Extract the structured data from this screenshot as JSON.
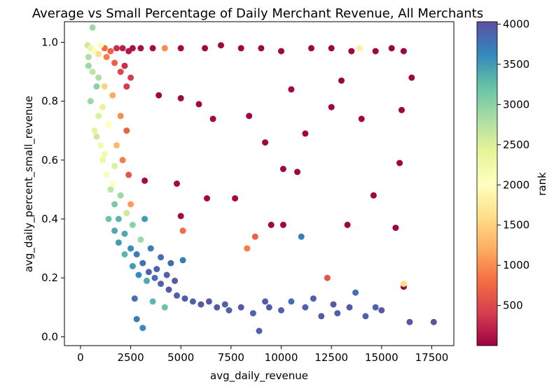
{
  "chart_data": {
    "type": "scatter",
    "title": "Average vs Small Percentage of Daily Merchant Revenue, All Merchants",
    "xlabel": "avg_daily_revenue",
    "ylabel": "avg_daily_percent_small_revenue",
    "xlim": [
      -800,
      18600
    ],
    "ylim": [
      -0.03,
      1.07
    ],
    "xticks": [
      0,
      2500,
      5000,
      7500,
      10000,
      12500,
      15000,
      17500
    ],
    "xtick_labels": [
      "0",
      "2500",
      "5000",
      "7500",
      "10000",
      "12500",
      "15000",
      "17500"
    ],
    "yticks": [
      0.0,
      0.2,
      0.4,
      0.6,
      0.8,
      1.0
    ],
    "ytick_labels": [
      "0.0",
      "0.2",
      "0.4",
      "0.6",
      "0.8",
      "1.0"
    ],
    "grid": false,
    "colorbar": {
      "label": "rank",
      "colormap": "Spectral",
      "range": [
        1,
        4030
      ],
      "ticks": [
        500,
        1000,
        1500,
        2000,
        2500,
        3000,
        3500,
        4000
      ],
      "tick_labels": [
        "500",
        "1000",
        "1500",
        "2000",
        "2500",
        "3000",
        "3500",
        "4000"
      ]
    },
    "points": [
      [
        350,
        0.99,
        2600
      ],
      [
        500,
        0.98,
        2300
      ],
      [
        700,
        0.97,
        2100
      ],
      [
        900,
        0.96,
        1600
      ],
      [
        1200,
        0.98,
        800
      ],
      [
        1500,
        0.97,
        700
      ],
      [
        1800,
        0.98,
        300
      ],
      [
        2100,
        0.98,
        200
      ],
      [
        2400,
        0.97,
        150
      ],
      [
        2600,
        0.98,
        120
      ],
      [
        3000,
        0.98,
        90
      ],
      [
        3600,
        0.98,
        60
      ],
      [
        4200,
        0.98,
        1000
      ],
      [
        5000,
        0.98,
        50
      ],
      [
        6200,
        0.98,
        40
      ],
      [
        7000,
        0.99,
        30
      ],
      [
        8000,
        0.98,
        30
      ],
      [
        9000,
        0.98,
        25
      ],
      [
        10000,
        0.97,
        20
      ],
      [
        11500,
        0.98,
        20
      ],
      [
        12500,
        0.98,
        15
      ],
      [
        13500,
        0.97,
        15
      ],
      [
        13900,
        0.98,
        1800
      ],
      [
        14700,
        0.97,
        10
      ],
      [
        15500,
        0.98,
        10
      ],
      [
        16100,
        0.97,
        10
      ],
      [
        16500,
        0.88,
        10
      ],
      [
        13000,
        0.87,
        10
      ],
      [
        10500,
        0.84,
        20
      ],
      [
        3900,
        0.82,
        40
      ],
      [
        5000,
        0.81,
        40
      ],
      [
        5900,
        0.79,
        40
      ],
      [
        12500,
        0.78,
        20
      ],
      [
        16000,
        0.77,
        10
      ],
      [
        6600,
        0.74,
        40
      ],
      [
        8400,
        0.75,
        30
      ],
      [
        14000,
        0.74,
        15
      ],
      [
        11200,
        0.69,
        20
      ],
      [
        9200,
        0.66,
        25
      ],
      [
        15900,
        0.59,
        10
      ],
      [
        10100,
        0.57,
        25
      ],
      [
        10800,
        0.56,
        20
      ],
      [
        3200,
        0.53,
        60
      ],
      [
        4800,
        0.52,
        50
      ],
      [
        6300,
        0.47,
        40
      ],
      [
        7700,
        0.47,
        40
      ],
      [
        14600,
        0.48,
        15
      ],
      [
        5000,
        0.41,
        60
      ],
      [
        9500,
        0.38,
        30
      ],
      [
        10100,
        0.38,
        30
      ],
      [
        13300,
        0.38,
        20
      ],
      [
        15700,
        0.37,
        10
      ],
      [
        5100,
        0.36,
        800
      ],
      [
        11000,
        0.34,
        3700
      ],
      [
        8700,
        0.34,
        700
      ],
      [
        8300,
        0.3,
        900
      ],
      [
        12300,
        0.2,
        600
      ],
      [
        16100,
        0.17,
        10
      ],
      [
        16100,
        0.18,
        1600
      ],
      [
        400,
        0.95,
        2800
      ],
      [
        600,
        0.9,
        2700
      ],
      [
        800,
        0.85,
        3000
      ],
      [
        500,
        0.8,
        2900
      ],
      [
        900,
        0.75,
        2500
      ],
      [
        700,
        0.7,
        2400
      ],
      [
        1000,
        0.65,
        2200
      ],
      [
        1100,
        0.6,
        2300
      ],
      [
        1300,
        0.55,
        2100
      ],
      [
        1500,
        0.5,
        2700
      ],
      [
        1700,
        0.45,
        3100
      ],
      [
        1900,
        0.4,
        3300
      ],
      [
        2200,
        0.35,
        3400
      ],
      [
        2500,
        0.3,
        3600
      ],
      [
        2800,
        0.28,
        3700
      ],
      [
        3100,
        0.25,
        3800
      ],
      [
        3400,
        0.22,
        3900
      ],
      [
        3700,
        0.2,
        3800
      ],
      [
        4000,
        0.18,
        3900
      ],
      [
        4400,
        0.16,
        3950
      ],
      [
        4800,
        0.14,
        3900
      ],
      [
        5200,
        0.13,
        3950
      ],
      [
        5600,
        0.12,
        3900
      ],
      [
        6000,
        0.11,
        3950
      ],
      [
        6800,
        0.1,
        3950
      ],
      [
        7400,
        0.09,
        3900
      ],
      [
        8000,
        0.1,
        3950
      ],
      [
        8600,
        0.08,
        3900
      ],
      [
        8900,
        0.02,
        3900
      ],
      [
        9400,
        0.1,
        3950
      ],
      [
        10000,
        0.09,
        3900
      ],
      [
        10500,
        0.12,
        3800
      ],
      [
        11200,
        0.1,
        3900
      ],
      [
        12000,
        0.07,
        3950
      ],
      [
        12800,
        0.08,
        3900
      ],
      [
        13400,
        0.1,
        3950
      ],
      [
        13700,
        0.15,
        3800
      ],
      [
        14200,
        0.07,
        3900
      ],
      [
        15000,
        0.09,
        3950
      ],
      [
        16400,
        0.05,
        4000
      ],
      [
        17600,
        0.05,
        4000
      ],
      [
        3100,
        0.03,
        3600
      ],
      [
        2800,
        0.06,
        3700
      ],
      [
        1200,
        0.85,
        1500
      ],
      [
        1600,
        0.82,
        1200
      ],
      [
        2000,
        0.75,
        1000
      ],
      [
        2300,
        0.7,
        700
      ],
      [
        1800,
        0.65,
        1300
      ],
      [
        2100,
        0.6,
        900
      ],
      [
        2400,
        0.55,
        600
      ],
      [
        2000,
        0.9,
        500
      ],
      [
        2300,
        0.85,
        400
      ],
      [
        1400,
        0.72,
        2000
      ],
      [
        1700,
        0.58,
        2500
      ],
      [
        2500,
        0.45,
        1100
      ],
      [
        3200,
        0.4,
        3500
      ],
      [
        2600,
        0.38,
        3000
      ],
      [
        3000,
        0.33,
        2900
      ],
      [
        3500,
        0.3,
        3700
      ],
      [
        4000,
        0.27,
        3800
      ],
      [
        4500,
        0.25,
        3850
      ],
      [
        2900,
        0.21,
        3600
      ],
      [
        3300,
        0.19,
        3400
      ],
      [
        600,
        1.05,
        2900
      ],
      [
        1000,
        0.99,
        2000
      ],
      [
        1300,
        0.95,
        900
      ],
      [
        1700,
        0.93,
        700
      ],
      [
        2200,
        0.92,
        300
      ],
      [
        2500,
        0.88,
        400
      ],
      [
        400,
        0.92,
        2900
      ],
      [
        900,
        0.88,
        2800
      ],
      [
        1100,
        0.78,
        2400
      ],
      [
        800,
        0.68,
        2600
      ],
      [
        1200,
        0.62,
        2200
      ],
      [
        1600,
        0.52,
        2000
      ],
      [
        2000,
        0.48,
        2900
      ],
      [
        2300,
        0.42,
        2600
      ],
      [
        1400,
        0.4,
        3200
      ],
      [
        1700,
        0.36,
        3400
      ],
      [
        1900,
        0.32,
        3500
      ],
      [
        2200,
        0.28,
        3300
      ],
      [
        2600,
        0.24,
        3500
      ],
      [
        3800,
        0.23,
        3900
      ],
      [
        4300,
        0.21,
        3900
      ],
      [
        4700,
        0.19,
        3950
      ],
      [
        5100,
        0.26,
        3700
      ],
      [
        4200,
        0.1,
        3200
      ],
      [
        3600,
        0.12,
        3300
      ],
      [
        2700,
        0.13,
        3800
      ],
      [
        6400,
        0.12,
        3950
      ],
      [
        7200,
        0.11,
        3900
      ],
      [
        9200,
        0.12,
        3950
      ],
      [
        11600,
        0.13,
        3900
      ],
      [
        12600,
        0.11,
        3950
      ],
      [
        14700,
        0.1,
        3900
      ]
    ]
  }
}
